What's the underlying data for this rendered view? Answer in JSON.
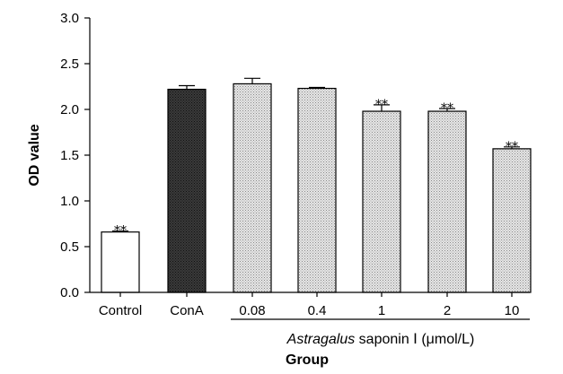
{
  "chart_data": {
    "type": "bar",
    "categories": [
      "Control",
      "ConA",
      "0.08",
      "0.4",
      "1",
      "2",
      "10"
    ],
    "values": [
      0.66,
      2.22,
      2.28,
      2.23,
      1.98,
      1.98,
      1.57
    ],
    "errors": [
      0.01,
      0.04,
      0.06,
      0.01,
      0.07,
      0.03,
      0.02
    ],
    "significance": [
      "**",
      "",
      "",
      "",
      "**",
      "**",
      "**"
    ],
    "bar_fills": [
      "white",
      "dark",
      "stipple",
      "stipple",
      "stipple",
      "stipple",
      "stipple"
    ],
    "ylabel": "OD value",
    "xlabel": "Group",
    "group_label_prefix": "Astragalus",
    "group_label_suffix": " saponin Ⅰ (μmol/L)",
    "ylim": [
      0,
      3.0
    ],
    "yticks": [
      "0.0",
      "0.5",
      "1.0",
      "1.5",
      "2.0",
      "2.5",
      "3.0"
    ],
    "ytick_values": [
      0,
      0.5,
      1.0,
      1.5,
      2.0,
      2.5,
      3.0
    ],
    "grid": false,
    "colors": {
      "white_bar": "#ffffff",
      "dark_bar": "#2a2a2a",
      "stipple_bar": "#d6d6d6",
      "stroke": "#000000"
    }
  }
}
